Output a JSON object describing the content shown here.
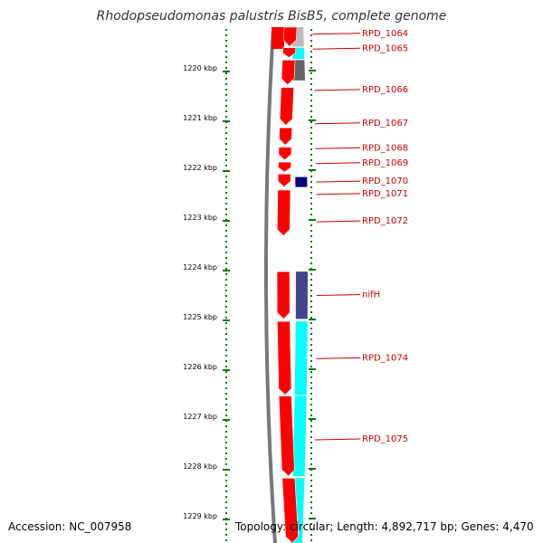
{
  "title": "Rhodopseudomonas palustris BisB5, complete genome",
  "accession_text": "Accession: NC_007958",
  "summary_text": "Topology: circular; Length: 4,892,717 bp; Genes: 4,470",
  "ruler": {
    "unit": "kbp",
    "ticks": [
      {
        "kbp": 1220,
        "label": "1220 kbp"
      },
      {
        "kbp": 1221,
        "label": "1221 kbp"
      },
      {
        "kbp": 1222,
        "label": "1222 kbp"
      },
      {
        "kbp": 1223,
        "label": "1223 kbp"
      },
      {
        "kbp": 1224,
        "label": "1224 kbp"
      },
      {
        "kbp": 1225,
        "label": "1225 kbp"
      },
      {
        "kbp": 1226,
        "label": "1226 kbp"
      },
      {
        "kbp": 1227,
        "label": "1227 kbp"
      },
      {
        "kbp": 1228,
        "label": "1228 kbp"
      },
      {
        "kbp": 1229,
        "label": "1229 kbp"
      }
    ]
  },
  "colors": {
    "backbone": "#777777",
    "cds": "#ff0000",
    "ruler": "#007700",
    "label": "#cc0000",
    "cyan": "#00ffff",
    "gray": "#bbbbbb",
    "darkgray": "#666666",
    "navy": "#00007a",
    "slate": "#444488"
  },
  "genes": [
    {
      "label": "RPD_1064",
      "start": 1219.08,
      "end": 1219.5,
      "color": "cds"
    },
    {
      "label": "RPD_1065",
      "start": 1219.52,
      "end": 1219.72,
      "color": "cds"
    },
    {
      "label": "RPD_1066",
      "start": 1219.77,
      "end": 1220.27,
      "color": "cds"
    },
    {
      "label": "RPD_1067",
      "start": 1220.32,
      "end": 1221.08,
      "color": "cds"
    },
    {
      "label": "RPD_1068",
      "start": 1221.13,
      "end": 1221.48,
      "color": "cds"
    },
    {
      "label": "RPD_1069",
      "start": 1221.52,
      "end": 1221.78,
      "color": "cds"
    },
    {
      "label": "RPD_1070",
      "start": 1221.82,
      "end": 1222.02,
      "color": "cds"
    },
    {
      "label": "RPD_1071",
      "start": 1222.06,
      "end": 1222.32,
      "color": "cds"
    },
    {
      "label": "RPD_1072",
      "start": 1222.38,
      "end": 1223.3,
      "color": "cds"
    },
    {
      "label": "nifH",
      "start": 1224.02,
      "end": 1224.97,
      "color": "cds"
    },
    {
      "label": "RPD_1074",
      "start": 1225.02,
      "end": 1226.5,
      "color": "cds"
    },
    {
      "label": "RPD_1075",
      "start": 1226.52,
      "end": 1228.13,
      "color": "cds"
    }
  ],
  "extra_cds": [
    {
      "start": 1228.17,
      "end": 1229.6
    }
  ],
  "features": [
    {
      "start": 1219.0,
      "end": 1219.5,
      "color": "gray"
    },
    {
      "start": 1219.52,
      "end": 1219.75,
      "color": "cyan"
    },
    {
      "start": 1219.77,
      "end": 1220.18,
      "color": "darkgray"
    },
    {
      "start": 1222.12,
      "end": 1222.32,
      "color": "navy"
    },
    {
      "start": 1224.02,
      "end": 1224.97,
      "color": "slate"
    },
    {
      "start": 1225.02,
      "end": 1226.5,
      "color": "cyan"
    },
    {
      "start": 1226.52,
      "end": 1228.13,
      "color": "cyan"
    },
    {
      "start": 1228.17,
      "end": 1229.6,
      "color": "cyan"
    }
  ],
  "label_positions_kbp": {
    "RPD_1064": 1219.25,
    "RPD_1065": 1219.55,
    "RPD_1066": 1220.38,
    "RPD_1067": 1221.05,
    "RPD_1068": 1221.55,
    "RPD_1069": 1221.85,
    "RPD_1070": 1222.22,
    "RPD_1071": 1222.47,
    "RPD_1072": 1223.02,
    "nifH": 1224.5,
    "RPD_1074": 1225.77,
    "RPD_1075": 1227.4
  }
}
